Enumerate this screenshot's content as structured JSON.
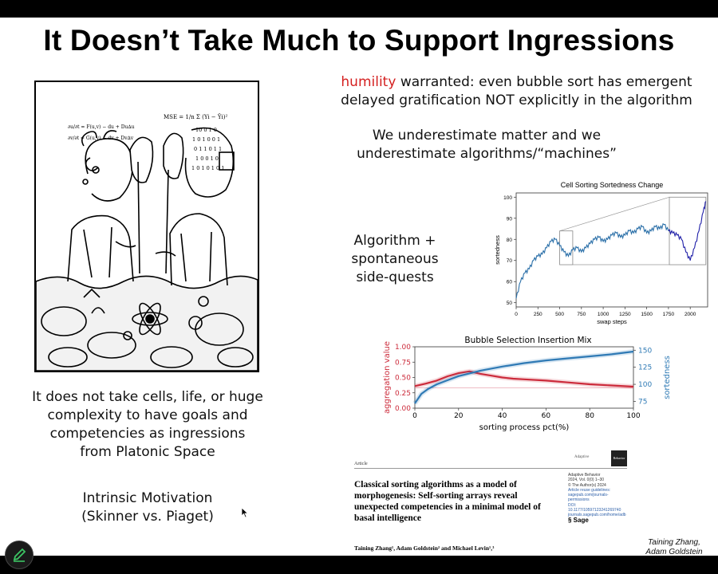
{
  "slide": {
    "title": "It Doesn’t Take Much to Support Ingressions",
    "humility_word": "humility",
    "humility_rest_1": " warranted: even bubble sort has emergent",
    "humility_line_2": "delayed gratification NOT explicitly in the algorithm",
    "underestimate_1": "We underestimate matter and we",
    "underestimate_2": "underestimate algorithms/“machines”",
    "algo_1": "Algorithm +",
    "algo_2": "spontaneous",
    "algo_3": "side-quests",
    "goals_1": "It does not take cells, life, or huge",
    "goals_2": "complexity to have goals and",
    "goals_3": "competencies as ingressions",
    "goals_4": "from Platonic Space",
    "intrinsic_1": "Intrinsic Motivation",
    "intrinsic_2": "(Skinner vs. Piaget)",
    "credit_1": "Taining Zhang,",
    "credit_2": "Adam Goldstein"
  },
  "cartoon": {
    "formula_1": "MSE = 1/n Σ (Yi − Ŷi)²",
    "formula_2": "∂u/∂t = F(u,v) − du + Du∆u",
    "formula_3": "∂v/∂t = G(u,v) − dv + Dv∆v",
    "binary_1": "10 0 1 0",
    "binary_2": "1 0 1 0 0 1",
    "binary_3": "0 1 1 0 1 1",
    "binary_4": "1 0 0 1 0",
    "binary_5": "1 0 1 0 1 0 1"
  },
  "paper": {
    "article_label": "Article",
    "journal_label": "Adaptive",
    "logo_text": "Behavior",
    "title": "Classical sorting algorithms as a model of morphogenesis: Self-sorting arrays reveal unexpected competencies in a minimal model of basal intelligence",
    "authors": "Taining Zhang¹, Adam Goldstein² and Michael Levin¹,³",
    "meta_1": "Adaptive Behavior",
    "meta_2": "2024, Vol. 0(0) 1–30",
    "meta_3": "© The Author(s) 2024",
    "meta_4": "Article reuse guidelines:",
    "meta_5": "sagepub.com/journals-permissions",
    "meta_6": "DOI: 10.1177/10597123241269740",
    "meta_7": "journals.sagepub.com/home/adb",
    "publisher": "Sage"
  },
  "colors": {
    "highlight_red": "#d41f1f",
    "line_blue": "#2a6fa8",
    "line_navy": "#1f1fa8",
    "agg_red": "#cc2b3b",
    "sorted_blue": "#2f7ab5"
  },
  "chart_data": [
    {
      "type": "line",
      "title": "Cell Sorting Sortedness Change",
      "xlabel": "swap steps",
      "ylabel": "sortedness",
      "xlim": [
        0,
        2200
      ],
      "ylim": [
        48,
        102
      ],
      "x_ticks": [
        "0",
        "250",
        "500",
        "750",
        "1000",
        "1250",
        "1500",
        "1750",
        "2000"
      ],
      "y_ticks": [
        "50",
        "60",
        "70",
        "80",
        "90",
        "100"
      ],
      "series": [
        {
          "color": "#2a6fa8",
          "x": [
            0,
            50,
            100,
            150,
            200,
            250,
            300,
            350,
            400,
            450,
            500,
            550,
            600,
            650,
            700,
            750,
            800,
            850,
            900,
            950,
            1000,
            1050,
            1100,
            1150,
            1200,
            1250,
            1300,
            1350,
            1400,
            1450,
            1500,
            1550,
            1600,
            1650,
            1700,
            1750
          ],
          "y": [
            52,
            60,
            64,
            66,
            70,
            72,
            73,
            76,
            79,
            80,
            77,
            74,
            72,
            75,
            76,
            74,
            76,
            78,
            80,
            81,
            79,
            80,
            82,
            83,
            81,
            82,
            84,
            83,
            85,
            86,
            83,
            84,
            86,
            85,
            87,
            84
          ]
        },
        {
          "color": "#1f1fa8",
          "x": [
            1750,
            1800,
            1850,
            1900,
            1950,
            2000,
            2050,
            2100,
            2150,
            2180
          ],
          "y": [
            84,
            83,
            82,
            80,
            74,
            70,
            76,
            84,
            93,
            98
          ]
        }
      ],
      "zoom_insets": [
        {
          "x": [
            500,
            650
          ],
          "y": [
            68,
            84
          ]
        },
        {
          "x": [
            1760,
            2180
          ],
          "y": [
            68,
            100
          ]
        }
      ]
    },
    {
      "type": "line",
      "title": "Bubble Selection Insertion Mix",
      "xlabel": "sorting process pct(%)",
      "ylabel": "aggregation value",
      "y2label": "sortedness",
      "xlim": [
        0,
        100
      ],
      "ylim": [
        0,
        1
      ],
      "y2lim": [
        65,
        155
      ],
      "x_ticks": [
        "0",
        "20",
        "40",
        "60",
        "80",
        "100"
      ],
      "y_ticks": [
        "0.00",
        "0.25",
        "0.50",
        "0.75",
        "1.00"
      ],
      "y2_ticks": [
        "75",
        "100",
        "125",
        "150"
      ],
      "series": [
        {
          "name": "aggregation value",
          "color": "#cc2b3b",
          "axis": "left",
          "x": [
            0,
            5,
            10,
            15,
            20,
            25,
            30,
            35,
            40,
            45,
            50,
            60,
            70,
            80,
            90,
            100
          ],
          "y": [
            0.36,
            0.4,
            0.45,
            0.52,
            0.57,
            0.6,
            0.56,
            0.53,
            0.5,
            0.48,
            0.47,
            0.45,
            0.42,
            0.39,
            0.37,
            0.35
          ]
        },
        {
          "name": "sortedness",
          "color": "#2f7ab5",
          "axis": "right",
          "x": [
            0,
            3,
            6,
            10,
            15,
            20,
            25,
            30,
            40,
            50,
            60,
            70,
            80,
            90,
            100
          ],
          "y": [
            72,
            86,
            93,
            100,
            106,
            112,
            116,
            120,
            126,
            131,
            135,
            138,
            141,
            144,
            148
          ]
        }
      ]
    }
  ]
}
